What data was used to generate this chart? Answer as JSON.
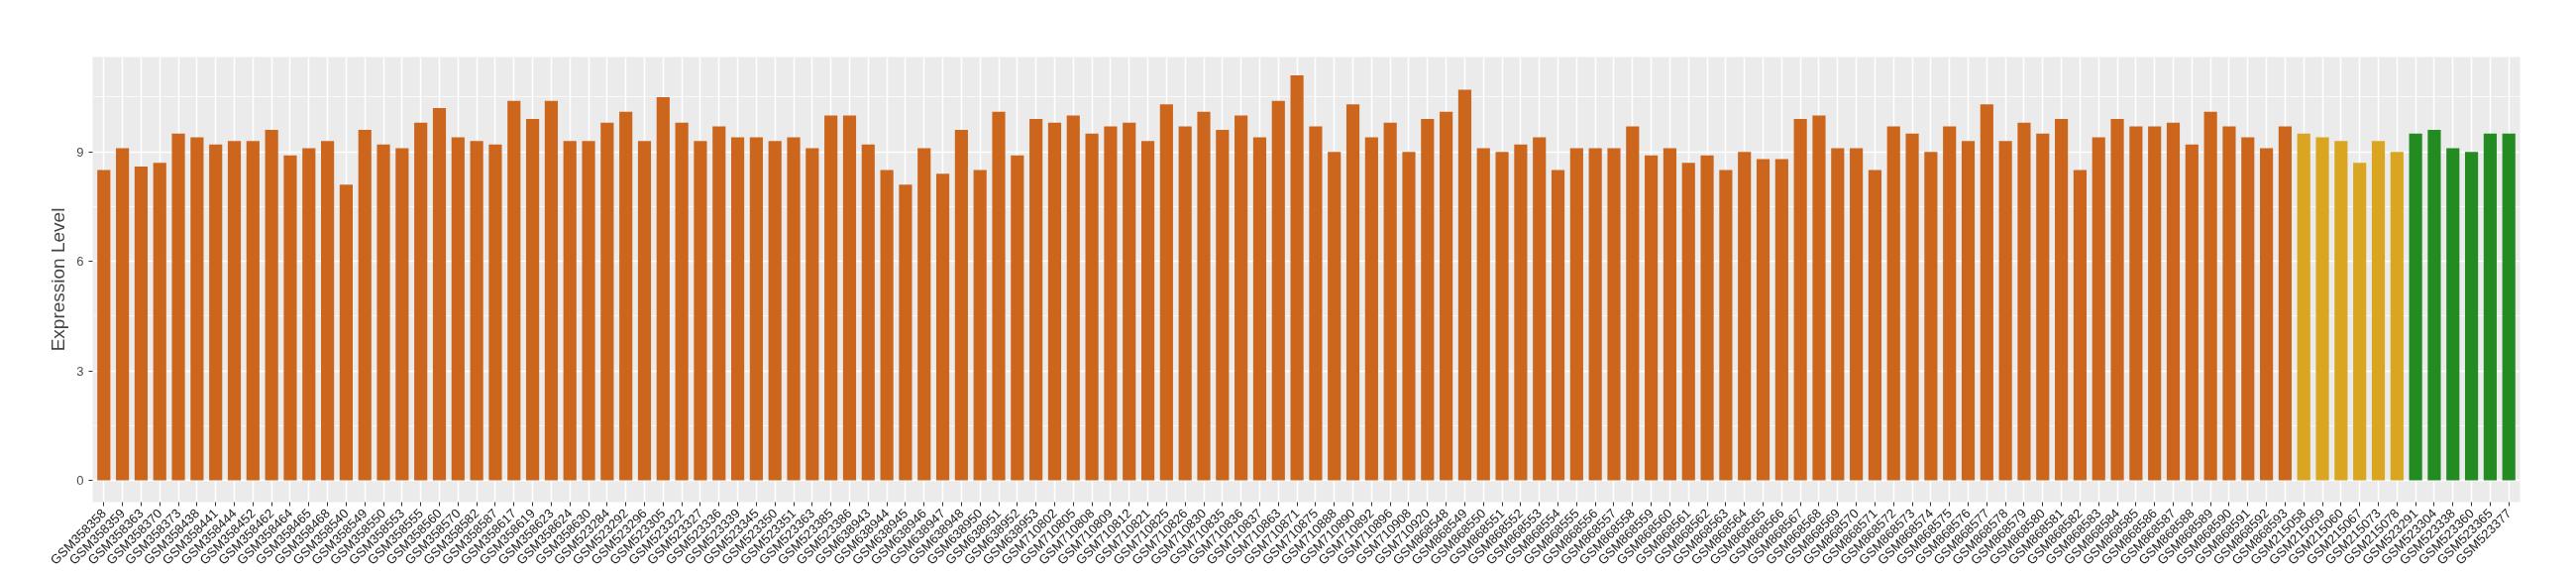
{
  "chart_data": {
    "type": "bar",
    "ylabel": "Expression Level",
    "categories": [
      "GSM358358",
      "GSM358359",
      "GSM358363",
      "GSM358370",
      "GSM358373",
      "GSM358438",
      "GSM358441",
      "GSM358444",
      "GSM358452",
      "GSM358462",
      "GSM358464",
      "GSM358465",
      "GSM358468",
      "GSM358540",
      "GSM358549",
      "GSM358550",
      "GSM358553",
      "GSM358555",
      "GSM358560",
      "GSM358570",
      "GSM358582",
      "GSM358587",
      "GSM358617",
      "GSM358619",
      "GSM358623",
      "GSM358624",
      "GSM358630",
      "GSM523284",
      "GSM523292",
      "GSM523296",
      "GSM523305",
      "GSM523322",
      "GSM523327",
      "GSM523336",
      "GSM523339",
      "GSM523345",
      "GSM523350",
      "GSM523351",
      "GSM523363",
      "GSM523385",
      "GSM523386",
      "GSM638943",
      "GSM638944",
      "GSM638945",
      "GSM638946",
      "GSM638947",
      "GSM638948",
      "GSM638950",
      "GSM638951",
      "GSM638952",
      "GSM638953",
      "GSM710802",
      "GSM710805",
      "GSM710808",
      "GSM710809",
      "GSM710812",
      "GSM710821",
      "GSM710825",
      "GSM710826",
      "GSM710830",
      "GSM710835",
      "GSM710836",
      "GSM710837",
      "GSM710863",
      "GSM710871",
      "GSM710875",
      "GSM710888",
      "GSM710890",
      "GSM710892",
      "GSM710896",
      "GSM710908",
      "GSM710920",
      "GSM868548",
      "GSM868549",
      "GSM868550",
      "GSM868551",
      "GSM868552",
      "GSM868553",
      "GSM868554",
      "GSM868555",
      "GSM868556",
      "GSM868557",
      "GSM868558",
      "GSM868559",
      "GSM868560",
      "GSM868561",
      "GSM868562",
      "GSM868563",
      "GSM868564",
      "GSM868565",
      "GSM868566",
      "GSM868567",
      "GSM868568",
      "GSM868569",
      "GSM868570",
      "GSM868571",
      "GSM868572",
      "GSM868573",
      "GSM868574",
      "GSM868575",
      "GSM868576",
      "GSM868577",
      "GSM868578",
      "GSM868579",
      "GSM868580",
      "GSM868581",
      "GSM868582",
      "GSM868583",
      "GSM868584",
      "GSM868585",
      "GSM868586",
      "GSM868587",
      "GSM868588",
      "GSM868589",
      "GSM868590",
      "GSM868591",
      "GSM868592",
      "GSM868593",
      "GSM215058",
      "GSM215059",
      "GSM215060",
      "GSM215067",
      "GSM215073",
      "GSM215078",
      "GSM523291",
      "GSM523304",
      "GSM523338",
      "GSM523360",
      "GSM523365",
      "GSM523377"
    ],
    "values": [
      8.5,
      9.1,
      8.6,
      8.7,
      9.5,
      9.4,
      9.2,
      9.3,
      9.3,
      9.6,
      8.9,
      9.1,
      9.3,
      8.1,
      9.6,
      9.2,
      9.1,
      9.8,
      10.2,
      9.4,
      9.3,
      9.2,
      10.4,
      9.9,
      10.4,
      9.3,
      9.3,
      9.8,
      10.1,
      9.3,
      10.5,
      9.8,
      9.3,
      9.7,
      9.4,
      9.4,
      9.3,
      9.4,
      9.1,
      10.0,
      10.0,
      9.2,
      8.5,
      8.1,
      9.1,
      8.4,
      9.6,
      8.5,
      10.1,
      8.9,
      9.9,
      9.8,
      10.0,
      9.5,
      9.7,
      9.8,
      9.3,
      10.3,
      9.7,
      10.1,
      9.6,
      10.0,
      9.4,
      10.4,
      11.1,
      9.7,
      9.0,
      10.3,
      9.4,
      9.8,
      9.0,
      9.9,
      10.1,
      10.7,
      9.1,
      9.0,
      9.2,
      9.4,
      8.5,
      9.1,
      9.1,
      9.1,
      9.7,
      8.9,
      9.1,
      8.7,
      8.9,
      8.5,
      9.0,
      8.8,
      8.8,
      9.9,
      10.0,
      9.1,
      9.1,
      8.5,
      9.7,
      9.5,
      9.0,
      9.7,
      9.3,
      10.3,
      9.3,
      9.8,
      9.5,
      9.9,
      8.5,
      9.4,
      9.9,
      9.7,
      9.7,
      9.8,
      9.2,
      10.1,
      9.7,
      9.4,
      9.1,
      9.7,
      9.5,
      9.4,
      9.3,
      8.7,
      9.3,
      9.0,
      9.5,
      9.6,
      9.1,
      9.0,
      9.5,
      9.5
    ],
    "colors": [
      "#cd661d",
      "#cd661d",
      "#cd661d",
      "#cd661d",
      "#cd661d",
      "#cd661d",
      "#cd661d",
      "#cd661d",
      "#cd661d",
      "#cd661d",
      "#cd661d",
      "#cd661d",
      "#cd661d",
      "#cd661d",
      "#cd661d",
      "#cd661d",
      "#cd661d",
      "#cd661d",
      "#cd661d",
      "#cd661d",
      "#cd661d",
      "#cd661d",
      "#cd661d",
      "#cd661d",
      "#cd661d",
      "#cd661d",
      "#cd661d",
      "#cd661d",
      "#cd661d",
      "#cd661d",
      "#cd661d",
      "#cd661d",
      "#cd661d",
      "#cd661d",
      "#cd661d",
      "#cd661d",
      "#cd661d",
      "#cd661d",
      "#cd661d",
      "#cd661d",
      "#cd661d",
      "#cd661d",
      "#cd661d",
      "#cd661d",
      "#cd661d",
      "#cd661d",
      "#cd661d",
      "#cd661d",
      "#cd661d",
      "#cd661d",
      "#cd661d",
      "#cd661d",
      "#cd661d",
      "#cd661d",
      "#cd661d",
      "#cd661d",
      "#cd661d",
      "#cd661d",
      "#cd661d",
      "#cd661d",
      "#cd661d",
      "#cd661d",
      "#cd661d",
      "#cd661d",
      "#cd661d",
      "#cd661d",
      "#cd661d",
      "#cd661d",
      "#cd661d",
      "#cd661d",
      "#cd661d",
      "#cd661d",
      "#cd661d",
      "#cd661d",
      "#cd661d",
      "#cd661d",
      "#cd661d",
      "#cd661d",
      "#cd661d",
      "#cd661d",
      "#cd661d",
      "#cd661d",
      "#cd661d",
      "#cd661d",
      "#cd661d",
      "#cd661d",
      "#cd661d",
      "#cd661d",
      "#cd661d",
      "#cd661d",
      "#cd661d",
      "#cd661d",
      "#cd661d",
      "#cd661d",
      "#cd661d",
      "#cd661d",
      "#cd661d",
      "#cd661d",
      "#cd661d",
      "#cd661d",
      "#cd661d",
      "#cd661d",
      "#cd661d",
      "#cd661d",
      "#cd661d",
      "#cd661d",
      "#cd661d",
      "#cd661d",
      "#cd661d",
      "#cd661d",
      "#cd661d",
      "#cd661d",
      "#cd661d",
      "#cd661d",
      "#cd661d",
      "#cd661d",
      "#cd661d",
      "#cd661d",
      "#daa520",
      "#daa520",
      "#daa520",
      "#daa520",
      "#daa520",
      "#daa520",
      "#228b22",
      "#228b22",
      "#228b22",
      "#228b22",
      "#228b22",
      "#228b22"
    ],
    "ylim": [
      -0.6,
      11.6
    ],
    "yticks": [
      0,
      3,
      6,
      9
    ],
    "grid": true
  }
}
